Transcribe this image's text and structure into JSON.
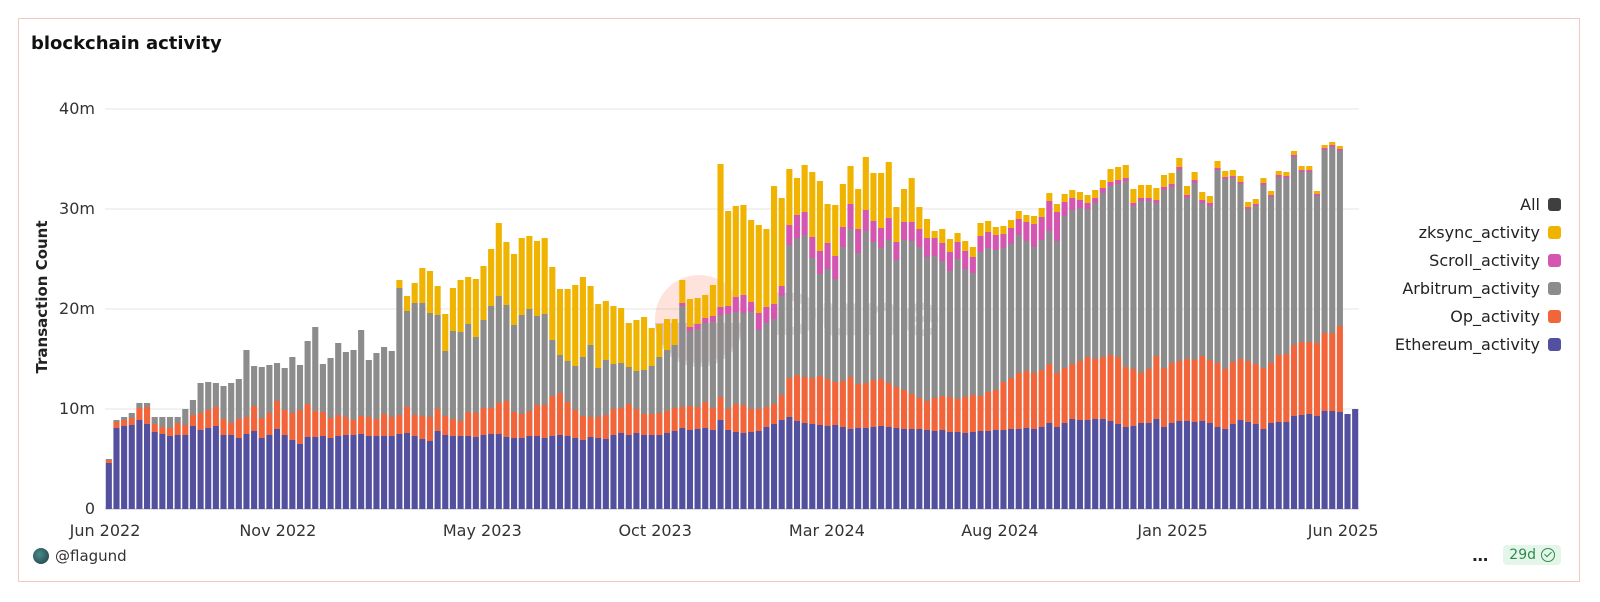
{
  "card": {
    "title": "blockchain activity"
  },
  "footer": {
    "author": "@flagund",
    "more": "…",
    "age": "29d"
  },
  "watermark": "Dune",
  "colors": {
    "All": "#3f3f3f",
    "zksync_activity": "#f0b400",
    "Scroll_activity": "#d456b0",
    "Arbitrum_activity": "#8c8c8c",
    "Op_activity": "#f2653a",
    "Ethereum_activity": "#5450a0"
  },
  "chart_data": {
    "type": "bar",
    "stacked": true,
    "interval": "weekly",
    "ylabel": "Transaction Count",
    "ylim": [
      0,
      43000000
    ],
    "yticks": [
      {
        "value": 0,
        "label": "0"
      },
      {
        "value": 10000000,
        "label": "10m"
      },
      {
        "value": 20000000,
        "label": "20m"
      },
      {
        "value": 30000000,
        "label": "30m"
      },
      {
        "value": 40000000,
        "label": "40m"
      }
    ],
    "xticks": [
      "Jun 2022",
      "Nov 2022",
      "May 2023",
      "Oct 2023",
      "Mar 2024",
      "Aug 2024",
      "Jan 2025",
      "Jun 2025"
    ],
    "x_range": [
      "2022-06-01",
      "2025-06-15"
    ],
    "legend": [
      "All",
      "zksync_activity",
      "Scroll_activity",
      "Arbitrum_activity",
      "Op_activity",
      "Ethereum_activity"
    ],
    "stack_order": [
      "Ethereum_activity",
      "Op_activity",
      "Arbitrum_activity",
      "Scroll_activity",
      "zksync_activity"
    ],
    "series": [
      {
        "name": "Ethereum_activity",
        "values": [
          4.6,
          8.1,
          8.3,
          8.4,
          8.9,
          8.5,
          7.7,
          7.5,
          7.3,
          7.4,
          7.4,
          8.3,
          7.9,
          8.1,
          8.3,
          7.4,
          7.4,
          7.1,
          7.5,
          7.8,
          7.1,
          7.4,
          8.0,
          7.4,
          6.9,
          6.5,
          7.2,
          7.2,
          7.3,
          7.1,
          7.3,
          7.4,
          7.4,
          7.5,
          7.3,
          7.3,
          7.3,
          7.3,
          7.5,
          7.6,
          7.3,
          7.0,
          6.8,
          7.8,
          7.4,
          7.3,
          7.3,
          7.3,
          7.2,
          7.4,
          7.5,
          7.5,
          7.2,
          7.1,
          7.1,
          7.3,
          7.3,
          7.1,
          7.3,
          7.4,
          7.3,
          7.1,
          6.9,
          7.2,
          7.1,
          7.0,
          7.4,
          7.6,
          7.4,
          7.6,
          7.4,
          7.4,
          7.4,
          7.6,
          7.8,
          8.1,
          7.9,
          8.0,
          8.1,
          7.9,
          8.9,
          7.9,
          7.7,
          7.6,
          7.7,
          7.8,
          8.2,
          8.5,
          8.9,
          9.2,
          8.8,
          8.6,
          8.5,
          8.4,
          8.3,
          8.4,
          8.2,
          8.0,
          8.1,
          8.1,
          8.2,
          8.3,
          8.2,
          8.1,
          8.0,
          8.0,
          8.0,
          7.9,
          7.8,
          7.9,
          7.7,
          7.7,
          7.6,
          7.7,
          7.8,
          7.8,
          7.9,
          7.9,
          8.0,
          8.0,
          8.1,
          8.0,
          8.2,
          8.6,
          8.2,
          8.6,
          9.0,
          8.9,
          8.9,
          9.0,
          9.0,
          8.8,
          8.5,
          8.2,
          8.3,
          8.6,
          8.6,
          9.0,
          8.2,
          8.6,
          8.8,
          8.8,
          8.7,
          8.8,
          8.6,
          8.2,
          8.0,
          8.5,
          8.9,
          8.7,
          8.5,
          8.0,
          8.6,
          8.7,
          8.7,
          9.3,
          9.4,
          9.5,
          9.3,
          9.8,
          9.8,
          9.7,
          9.5,
          10.0
        ]
      },
      {
        "name": "Op_activity",
        "values": [
          0.3,
          0.6,
          0.6,
          0.7,
          1.2,
          1.7,
          0.8,
          0.7,
          0.8,
          1.2,
          1.0,
          1.1,
          1.7,
          1.8,
          1.9,
          1.6,
          1.2,
          1.9,
          1.7,
          2.5,
          2.0,
          2.2,
          2.8,
          2.5,
          2.7,
          3.4,
          3.3,
          2.6,
          2.4,
          2.0,
          2.1,
          1.8,
          1.5,
          1.8,
          1.9,
          1.7,
          2.2,
          1.9,
          1.9,
          2.6,
          2.1,
          2.3,
          2.4,
          2.2,
          1.9,
          1.7,
          1.5,
          2.4,
          2.4,
          2.7,
          2.6,
          3.1,
          3.6,
          2.6,
          2.4,
          2.5,
          3.1,
          3.3,
          4.0,
          4.2,
          3.4,
          2.8,
          2.4,
          2.0,
          2.1,
          2.4,
          2.6,
          2.5,
          3.1,
          2.4,
          2.1,
          2.1,
          2.2,
          2.2,
          2.3,
          2.1,
          2.4,
          2.2,
          2.6,
          2.2,
          2.3,
          2.1,
          2.8,
          2.8,
          2.3,
          2.2,
          2.0,
          2.0,
          2.5,
          3.9,
          4.6,
          4.6,
          4.6,
          4.9,
          4.7,
          4.3,
          4.6,
          5.2,
          4.4,
          4.5,
          4.7,
          4.7,
          4.4,
          4.1,
          3.9,
          3.5,
          3.1,
          2.9,
          3.3,
          3.4,
          3.5,
          3.3,
          3.6,
          3.7,
          3.5,
          3.9,
          4.0,
          4.8,
          5.1,
          5.6,
          5.7,
          5.6,
          5.7,
          5.9,
          5.4,
          5.5,
          5.5,
          5.9,
          6.3,
          6.0,
          6.2,
          6.6,
          6.7,
          6.0,
          5.7,
          5.0,
          5.4,
          6.3,
          5.9,
          6.0,
          6.0,
          6.2,
          6.2,
          6.5,
          6.3,
          6.4,
          6.0,
          6.2,
          6.1,
          6.1,
          6.0,
          6.1,
          6.0,
          6.7,
          6.8,
          7.1,
          7.3,
          7.2,
          7.3,
          7.8,
          7.8,
          8.6
        ]
      },
      {
        "name": "Arbitrum_activity",
        "values": [
          0.1,
          0.2,
          0.3,
          0.5,
          0.5,
          0.4,
          0.7,
          1.0,
          1.1,
          0.6,
          1.6,
          1.5,
          3.0,
          2.8,
          2.4,
          3.3,
          4.0,
          4.0,
          6.7,
          4.0,
          5.1,
          4.8,
          3.8,
          4.2,
          5.6,
          4.5,
          6.3,
          8.4,
          4.8,
          6.0,
          7.2,
          6.5,
          7.0,
          8.6,
          5.7,
          6.6,
          6.7,
          6.6,
          12.7,
          9.6,
          11.2,
          11.3,
          10.4,
          9.4,
          6.5,
          8.8,
          8.9,
          8.8,
          7.6,
          8.8,
          10.2,
          10.7,
          9.6,
          8.7,
          9.9,
          10.2,
          8.9,
          9.1,
          5.6,
          3.8,
          4.1,
          4.4,
          5.9,
          7.2,
          4.9,
          5.5,
          4.5,
          4.5,
          3.7,
          3.8,
          4.4,
          4.8,
          5.6,
          6.1,
          6.3,
          10.1,
          7.5,
          7.8,
          7.9,
          8.6,
          8.2,
          9.5,
          9.2,
          9.2,
          9.7,
          7.9,
          8.4,
          8.5,
          9.9,
          13.3,
          13.7,
          14.2,
          12.0,
          10.2,
          11.0,
          10.3,
          13.4,
          14.8,
          13.1,
          15.2,
          13.8,
          13.1,
          14.3,
          12.7,
          15.0,
          15.3,
          15.1,
          14.4,
          14.2,
          13.5,
          12.6,
          14.0,
          12.8,
          12.2,
          14.4,
          14.4,
          14.0,
          13.4,
          13.4,
          13.8,
          13.0,
          12.6,
          13.0,
          13.3,
          13.2,
          15.2,
          15.4,
          15.3,
          14.8,
          15.6,
          16.4,
          16.9,
          17.3,
          18.6,
          16.3,
          17.2,
          16.8,
          15.3,
          17.8,
          17.6,
          19.1,
          16.1,
          17.7,
          15.3,
          15.4,
          19.3,
          19.0,
          18.4,
          17.5,
          15.2,
          15.8,
          18.3,
          16.6,
          17.8,
          17.6,
          18.8,
          17.0,
          17.0,
          14.7,
          18.3,
          18.6,
          17.5
        ]
      },
      {
        "name": "Scroll_activity",
        "values": [
          0,
          0,
          0,
          0,
          0,
          0,
          0,
          0,
          0,
          0,
          0,
          0,
          0,
          0,
          0,
          0,
          0,
          0,
          0,
          0,
          0,
          0,
          0,
          0,
          0,
          0,
          0,
          0,
          0,
          0,
          0,
          0,
          0,
          0,
          0,
          0,
          0,
          0,
          0,
          0,
          0,
          0,
          0,
          0,
          0,
          0,
          0,
          0,
          0,
          0,
          0,
          0,
          0,
          0,
          0,
          0,
          0,
          0,
          0,
          0,
          0,
          0,
          0,
          0,
          0,
          0,
          0,
          0,
          0,
          0,
          0,
          0,
          0,
          0,
          0,
          0.3,
          0.4,
          0.5,
          0.5,
          0.6,
          0.8,
          0.8,
          1.5,
          1.8,
          1.0,
          1.7,
          1.6,
          1.5,
          1.0,
          2.0,
          2.3,
          2.3,
          2.1,
          2.3,
          2.6,
          2.3,
          2.0,
          2.5,
          2.4,
          2.1,
          2.1,
          2.0,
          2.2,
          1.8,
          1.8,
          1.9,
          1.8,
          1.9,
          1.8,
          1.8,
          1.9,
          1.7,
          1.8,
          1.6,
          1.6,
          1.6,
          1.5,
          1.4,
          1.6,
          1.6,
          1.9,
          2.3,
          2.3,
          3.0,
          2.9,
          1.4,
          1.2,
          0.8,
          0.6,
          0.5,
          0.5,
          0.4,
          0.4,
          0.3,
          0.3,
          0.3,
          0.3,
          0.3,
          0.3,
          0.3,
          0.3,
          0.3,
          0.3,
          0.3,
          0.3,
          0.2,
          0.2,
          0.2,
          0.2,
          0.2,
          0.2,
          0.2,
          0.2,
          0.2,
          0.2,
          0.2,
          0.2,
          0.2,
          0.2,
          0.2,
          0.2,
          0.2,
          0.2
        ]
      },
      {
        "name": "zksync_activity",
        "values": [
          0,
          0,
          0,
          0,
          0,
          0,
          0,
          0,
          0,
          0,
          0,
          0,
          0,
          0,
          0,
          0,
          0,
          0,
          0,
          0,
          0,
          0,
          0,
          0,
          0,
          0,
          0,
          0,
          0,
          0,
          0,
          0,
          0,
          0,
          0,
          0,
          0,
          0,
          0.8,
          1.5,
          2.0,
          3.5,
          4.2,
          2.9,
          3.7,
          4.3,
          5.2,
          4.7,
          5.8,
          5.4,
          5.7,
          7.3,
          6.3,
          7.1,
          7.7,
          7.3,
          7.5,
          7.6,
          7.3,
          6.6,
          7.2,
          8.1,
          8.0,
          5.9,
          6.4,
          5.9,
          5.8,
          5.5,
          4.4,
          5.1,
          5.3,
          3.8,
          3.3,
          3.1,
          2.6,
          2.3,
          2.8,
          2.6,
          2.3,
          3.1,
          14.3,
          9.5,
          9.1,
          9.0,
          8.2,
          8.8,
          7.8,
          11.8,
          8.8,
          5.6,
          3.7,
          4.7,
          6.5,
          7.0,
          3.9,
          5.1,
          4.3,
          3.8,
          4.0,
          5.3,
          4.8,
          5.5,
          5.6,
          3.5,
          3.3,
          4.4,
          2.2,
          1.9,
          0.7,
          1.4,
          1.3,
          0.9,
          1.0,
          1.0,
          1.3,
          1.1,
          0.8,
          0.8,
          0.8,
          0.8,
          0.7,
          0.8,
          0.9,
          0.8,
          0.8,
          0.8,
          0.8,
          0.8,
          0.8,
          0.8,
          0.8,
          1.3,
          1.3,
          1.3,
          1.4,
          1.3,
          1.3,
          1.2,
          1.2,
          1.1,
          0.9,
          0.9,
          0.8,
          0.8,
          0.7,
          0.7,
          0.6,
          0.6,
          0.6,
          0.5,
          0.5,
          0.5,
          0.4,
          0.4,
          0.4,
          0.4,
          0.4,
          0.4,
          0.3,
          0.3,
          0.3,
          0.3,
          0.3,
          0.3,
          0.3
        ]
      }
    ]
  }
}
